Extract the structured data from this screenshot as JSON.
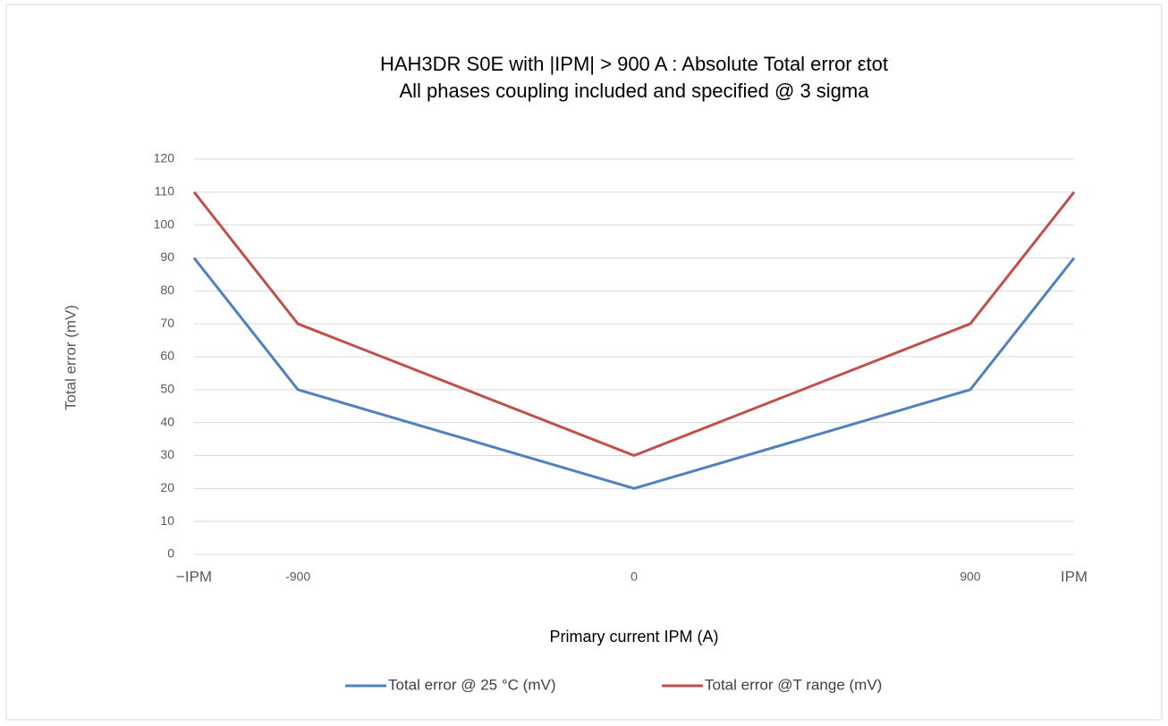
{
  "chart_data": {
    "type": "line",
    "title": "HAH3DR S0E with |IPM| > 900 A : Absolute Total error εtot",
    "subtitle": "All phases coupling included and specified @ 3 sigma",
    "x_label": "Primary current IPM (A)",
    "y_label": "Total error (mV)",
    "x": [
      -1178,
      -900,
      0,
      900,
      1178
    ],
    "xlim": [
      -1178,
      1178
    ],
    "xticks": [
      {
        "value": -1178,
        "label": "−IPM"
      },
      -900,
      0,
      900,
      {
        "value": 1178,
        "label": "IPM"
      }
    ],
    "ylim": [
      0,
      120
    ],
    "yticks": [
      0,
      10,
      20,
      30,
      40,
      50,
      60,
      70,
      80,
      90,
      100,
      110,
      120
    ],
    "grid": true,
    "legend": "bottom",
    "series": [
      {
        "name": "Total error @ 25 °C (mV)",
        "color": "#4f81bd",
        "values": [
          90,
          50,
          20,
          50,
          90
        ]
      },
      {
        "name": "Total error @T range (mV)",
        "color": "#c0504d",
        "values": [
          110,
          70,
          30,
          70,
          110
        ]
      }
    ]
  }
}
